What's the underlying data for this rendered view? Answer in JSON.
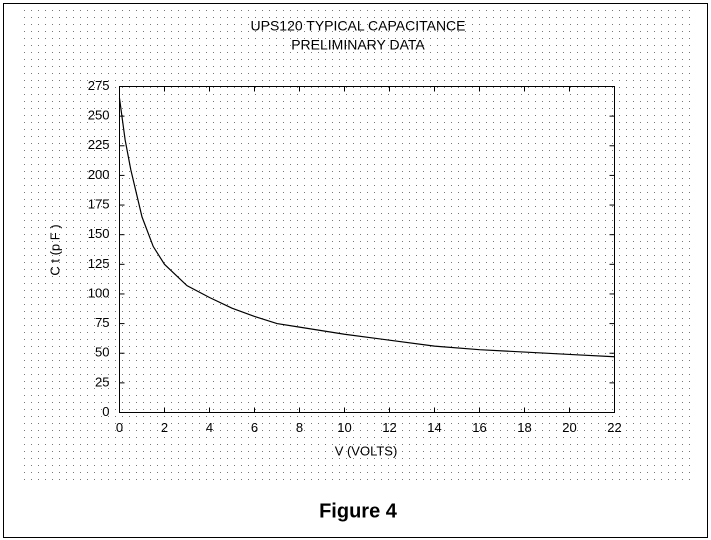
{
  "chart_data": {
    "type": "line",
    "title": "UPS120 TYPICAL CAPACITANCE",
    "subtitle": "PRELIMINARY DATA",
    "x_label": "V (VOLTS)",
    "y_label": "C t (p F )",
    "caption": "Figure 4",
    "x": [
      0,
      0.25,
      0.5,
      1,
      1.5,
      2,
      3,
      4,
      5,
      6,
      7,
      8,
      10,
      12,
      14,
      16,
      18,
      20,
      22
    ],
    "series": [
      {
        "color": "#000000",
        "values": [
          265,
          230,
          205,
          165,
          140,
          125,
          107,
          97,
          88,
          81,
          75,
          72,
          66,
          61,
          56,
          53,
          51,
          49,
          47
        ]
      }
    ],
    "xlim": [
      0,
      22
    ],
    "xticks": [
      0,
      2,
      4,
      6,
      8,
      10,
      12,
      14,
      16,
      18,
      20,
      22
    ],
    "ylim": [
      0,
      275
    ],
    "yticks": [
      0,
      25,
      50,
      75,
      100,
      125,
      150,
      175,
      200,
      225,
      250,
      275
    ]
  }
}
